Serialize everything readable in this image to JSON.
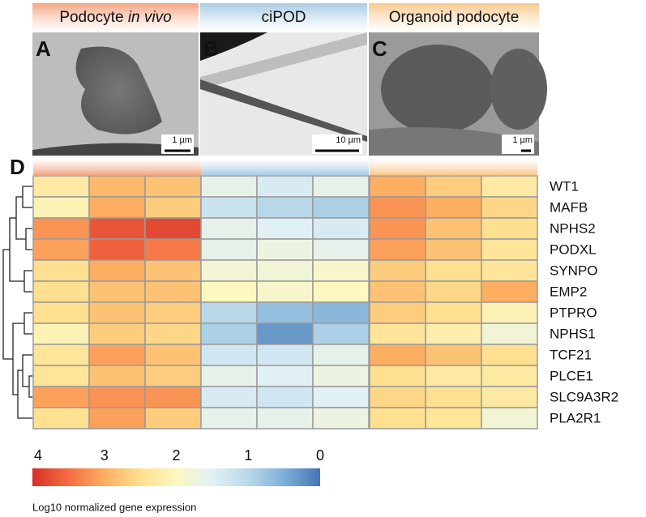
{
  "panels": [
    {
      "letter": "A",
      "header_parts": [
        "Podocyte ",
        "in vivo"
      ],
      "scale_bar": "1 µm",
      "color": "#f4a582"
    },
    {
      "letter": "B",
      "header_parts": [
        "ciPOD"
      ],
      "scale_bar": "10 µm",
      "color": "#a6cbe3"
    },
    {
      "letter": "C",
      "header_parts": [
        "Organoid podocyte"
      ],
      "scale_bar": "1 µm",
      "color": "#f8c88c"
    }
  ],
  "chart_data": {
    "type": "heatmap",
    "letter": "D",
    "rows": [
      "WT1",
      "MAFB",
      "NPHS2",
      "PODXL",
      "SYNPO",
      "EMP2",
      "PTPRO",
      "NPHS1",
      "TCF21",
      "PLCE1",
      "SLC9A3R2",
      "PLA2R1"
    ],
    "values": [
      [
        2.3,
        2.9,
        2.8,
        1.6,
        1.4,
        1.6,
        3.0,
        2.7,
        2.3
      ],
      [
        2.1,
        3.0,
        2.7,
        1.2,
        1.0,
        0.9,
        3.2,
        3.0,
        2.6
      ],
      [
        3.2,
        3.7,
        3.8,
        1.6,
        1.5,
        1.4,
        3.2,
        2.8,
        2.5
      ],
      [
        3.1,
        3.6,
        3.4,
        1.6,
        1.7,
        1.6,
        3.1,
        2.8,
        2.4
      ],
      [
        2.5,
        3.0,
        2.8,
        1.8,
        1.8,
        1.9,
        2.7,
        2.5,
        2.4
      ],
      [
        2.5,
        2.8,
        2.8,
        2.0,
        1.9,
        2.0,
        2.8,
        2.6,
        3.0
      ],
      [
        2.5,
        2.8,
        2.7,
        1.0,
        0.7,
        0.6,
        2.7,
        2.5,
        2.1
      ],
      [
        2.1,
        2.7,
        2.6,
        0.9,
        0.3,
        0.9,
        2.4,
        2.2,
        1.8
      ],
      [
        2.4,
        3.1,
        2.8,
        1.3,
        1.3,
        1.6,
        3.0,
        2.8,
        2.5
      ],
      [
        2.4,
        2.8,
        2.7,
        1.6,
        1.5,
        1.7,
        2.5,
        2.3,
        2.3
      ],
      [
        3.1,
        3.2,
        3.2,
        1.4,
        1.3,
        1.5,
        2.6,
        2.5,
        2.3
      ],
      [
        2.5,
        3.1,
        2.7,
        1.6,
        1.6,
        1.7,
        2.5,
        2.4,
        1.8
      ]
    ],
    "zlim": [
      4,
      0
    ],
    "zticks": [
      4,
      3,
      2,
      1,
      0
    ],
    "colorscale": [
      "#d73027",
      "#f46d43",
      "#fdae61",
      "#fee090",
      "#fdf7c0",
      "#e0f0f5",
      "#b8d8ea",
      "#7eafd6",
      "#4575b4"
    ],
    "colorbar_label": "Log10 normalized gene expression"
  }
}
